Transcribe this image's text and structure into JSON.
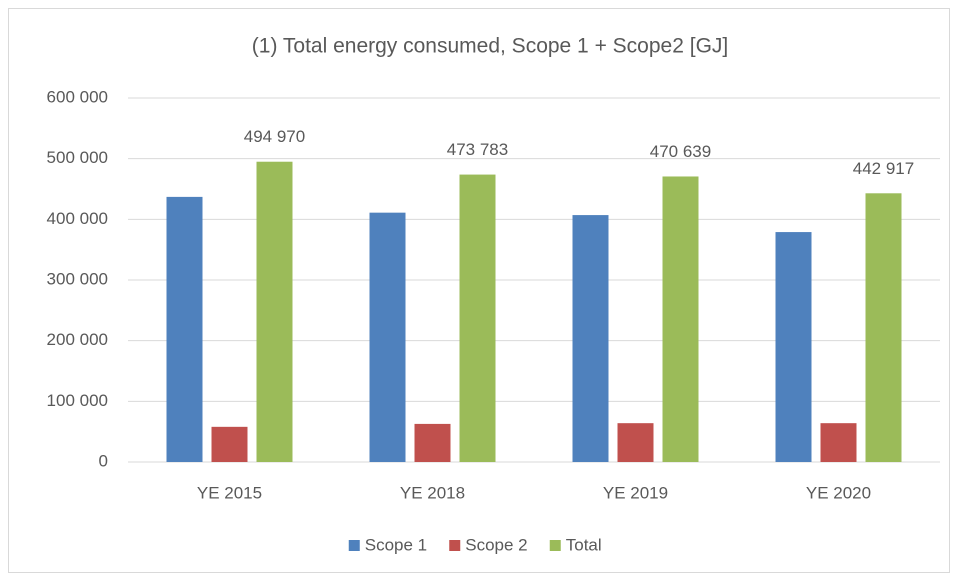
{
  "chart_data": {
    "type": "bar",
    "title": "(1) Total energy consumed, Scope 1 + Scope2 [GJ]",
    "categories": [
      "YE 2015",
      "YE 2018",
      "YE 2019",
      "YE 2020"
    ],
    "series": [
      {
        "name": "Scope 1",
        "color": "#4f81bd",
        "values": [
          437000,
          411000,
          407000,
          379000
        ]
      },
      {
        "name": "Scope 2",
        "color": "#c0504d",
        "values": [
          57970,
          62800,
          64000,
          64000
        ]
      },
      {
        "name": "Total",
        "color": "#9bbb59",
        "values": [
          494970,
          473783,
          470639,
          442917
        ],
        "value_labels": [
          "494 970",
          "473 783",
          "470 639",
          "442 917"
        ]
      }
    ],
    "ylim": [
      0,
      600000
    ],
    "yticks": [
      0,
      {
        "value": 100000,
        "label": "100 000"
      },
      {
        "value": 200000,
        "label": "200 000"
      },
      {
        "value": 300000,
        "label": "300 000"
      },
      {
        "value": 400000,
        "label": "400 000"
      },
      {
        "value": 500000,
        "label": "500 000"
      },
      {
        "value": 600000,
        "label": "600 000"
      }
    ],
    "grid": true,
    "legend": "bottom"
  }
}
